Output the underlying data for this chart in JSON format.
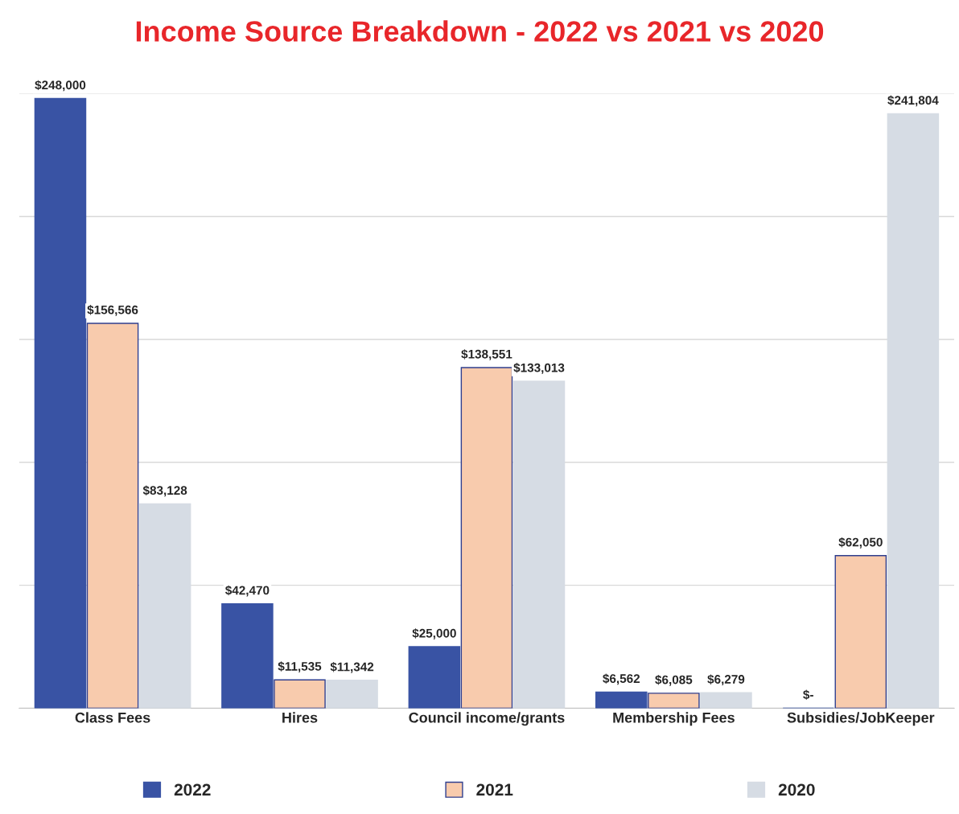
{
  "chart_data": {
    "type": "bar",
    "title": "Income Source Breakdown - 2022 vs 2021 vs 2020",
    "categories": [
      "Class Fees",
      "Hires",
      "Council income/grants",
      "Membership Fees",
      "Subsidies/JobKeeper"
    ],
    "series": [
      {
        "name": "2022",
        "color": "#3953a4",
        "values": [
          248000,
          42470,
          25000,
          6562,
          0
        ],
        "value_labels": [
          "$248,000",
          "$42,470",
          "$25,000",
          "$6,562",
          "$-"
        ]
      },
      {
        "name": "2021",
        "color": "#f8cbad",
        "values": [
          156566,
          11535,
          138551,
          6085,
          62050
        ],
        "value_labels": [
          "$156,566",
          "$11,535",
          "$138,551",
          "$6,085",
          "$62,050"
        ]
      },
      {
        "name": "2020",
        "color": "#d6dce4",
        "values": [
          83128,
          11342,
          133013,
          6279,
          241804
        ],
        "value_labels": [
          "$83,128",
          "$11,342",
          "$133,013",
          "$6,279",
          "$241,804"
        ]
      }
    ],
    "ylim": [
      0,
      250000
    ],
    "yticks": [
      {
        "value": 0,
        "label": null
      },
      {
        "value": 50000,
        "label": null
      },
      {
        "value": 100000,
        "label": null
      },
      {
        "value": 150000,
        "label": null
      },
      {
        "value": 200000,
        "label": null
      },
      {
        "value": 250000,
        "label": null
      }
    ],
    "grid": "y",
    "legend": "bottom",
    "tick_labels": "x"
  }
}
